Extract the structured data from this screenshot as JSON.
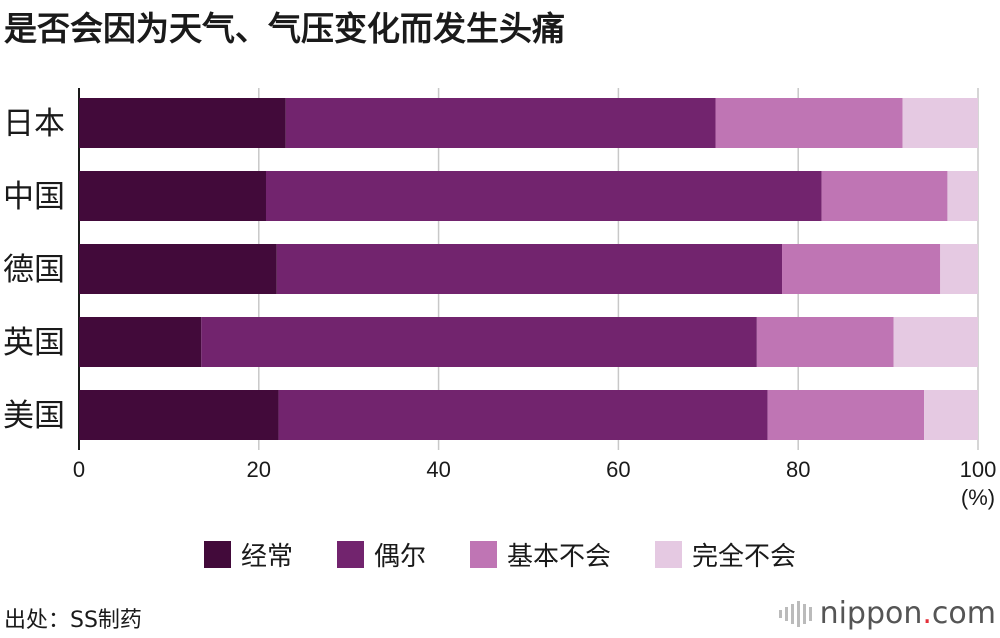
{
  "title": "是否会因为天气、气压变化而发生头痛",
  "chart_data": {
    "type": "bar",
    "orientation": "horizontal",
    "stacked": true,
    "categories": [
      "日本",
      "中国",
      "德国",
      "英国",
      "美国"
    ],
    "series": [
      {
        "name": "经常",
        "color": "#420a3a",
        "values": [
          23.0,
          20.8,
          22.0,
          13.6,
          22.2
        ]
      },
      {
        "name": "偶尔",
        "color": "#72246e",
        "values": [
          47.8,
          61.8,
          56.2,
          61.8,
          54.4
        ]
      },
      {
        "name": "基本不会",
        "color": "#bf75b4",
        "values": [
          20.8,
          14.0,
          17.6,
          15.2,
          17.4
        ]
      },
      {
        "name": "完全不会",
        "color": "#e5c9e2",
        "values": [
          8.4,
          3.4,
          4.2,
          9.4,
          6.0
        ]
      }
    ],
    "xlim": [
      0,
      100
    ],
    "xticks": [
      "0",
      "20",
      "40",
      "60",
      "80",
      "100"
    ],
    "xunit": "(%)",
    "grid": true,
    "legend": "bottom"
  },
  "source": "出处：SS制药",
  "logo": {
    "name": "nippon",
    "dot": ".",
    "suffix": "com"
  }
}
